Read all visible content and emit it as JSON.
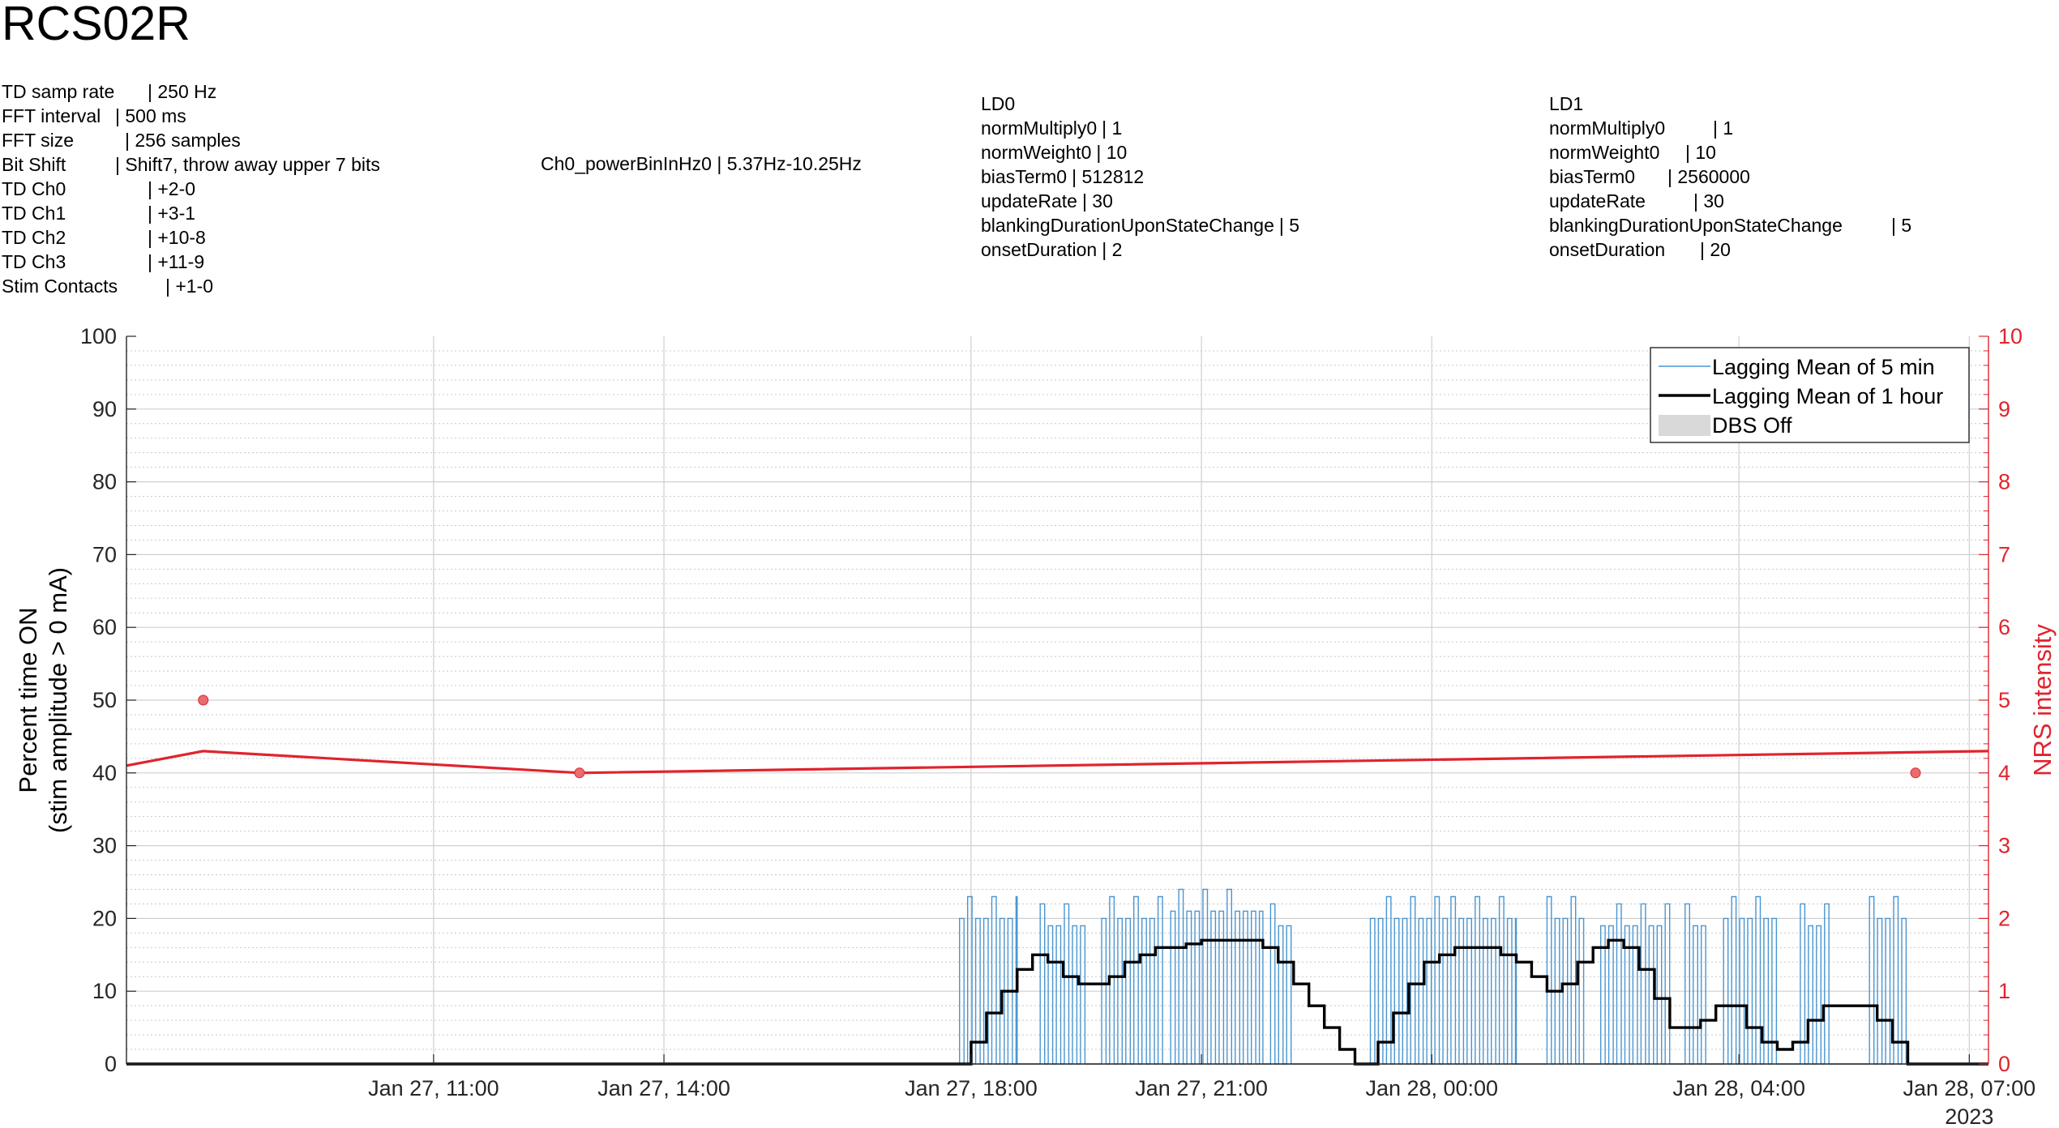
{
  "header": {
    "title": "RCS02R"
  },
  "td_settings": [
    {
      "key": "TD samp rate",
      "value": "| 250 Hz"
    },
    {
      "key": "FFT interval",
      "value": "| 500 ms"
    },
    {
      "key": "FFT size",
      "value": "| 256 samples"
    },
    {
      "key": "Bit Shift",
      "value": "| Shift7, throw away upper 7 bits"
    },
    {
      "key": "TD Ch0",
      "value": "| +2-0"
    },
    {
      "key": "TD Ch1",
      "value": "| +3-1"
    },
    {
      "key": "TD Ch2",
      "value": "| +10-8"
    },
    {
      "key": "TD Ch3",
      "value": "| +11-9"
    },
    {
      "key": "Stim Contacts",
      "value": "| +1-0"
    }
  ],
  "power_band": {
    "text": "Ch0_powerBinInHz0 | 5.37Hz-10.25Hz"
  },
  "ld0": {
    "title": "LD0",
    "rows": [
      {
        "key": "normMultiply0",
        "value": "| 1"
      },
      {
        "key": "normWeight0",
        "value": "| 10"
      },
      {
        "key": "biasTerm0",
        "value": "| 512812"
      },
      {
        "key": "updateRate",
        "value": "| 30"
      },
      {
        "key": "blankingDurationUponStateChange",
        "value": "| 5"
      },
      {
        "key": "onsetDuration",
        "value": "| 2"
      }
    ]
  },
  "ld1": {
    "title": "LD1",
    "rows": [
      {
        "key": "normMultiply0",
        "value": "| 1"
      },
      {
        "key": "normWeight0",
        "value": "| 10"
      },
      {
        "key": "biasTerm0",
        "value": "| 2560000"
      },
      {
        "key": "updateRate",
        "value": "| 30"
      },
      {
        "key": "blankingDurationUponStateChange",
        "value": "| 5"
      },
      {
        "key": "onsetDuration",
        "value": "| 20"
      }
    ]
  },
  "chart_data": {
    "type": "line",
    "title": "",
    "ylabel_left": [
      "Percent time ON",
      "(stim amplitude > 0 mA)"
    ],
    "ylabel_right": "NRS intensity",
    "xlabel": "",
    "year_label": "2023",
    "x_unit": "hours relative to Jan 27, 00:00",
    "xlim": [
      7.0,
      31.25
    ],
    "ylim_left": [
      0,
      100
    ],
    "ylim_right": [
      0,
      10
    ],
    "y_ticks_left": [
      "0",
      "10",
      "20",
      "30",
      "40",
      "50",
      "60",
      "70",
      "80",
      "90",
      "100"
    ],
    "y_ticks_right": [
      "0",
      "1",
      "2",
      "3",
      "4",
      "5",
      "6",
      "7",
      "8",
      "9",
      "10"
    ],
    "x_ticks": [
      {
        "x": 11,
        "label": "Jan 27, 11:00"
      },
      {
        "x": 14,
        "label": "Jan 27, 14:00"
      },
      {
        "x": 18,
        "label": "Jan 27, 18:00"
      },
      {
        "x": 21,
        "label": "Jan 27, 21:00"
      },
      {
        "x": 24,
        "label": "Jan 28, 00:00"
      },
      {
        "x": 28,
        "label": "Jan 28, 04:00"
      },
      {
        "x": 31,
        "label": "Jan 28, 07:00"
      }
    ],
    "grid": true,
    "minor_grid_y": true,
    "legend_position": "top-right",
    "legend": [
      {
        "label": "Lagging Mean of 5 min",
        "style": "thin-line",
        "color": "#4a95d0"
      },
      {
        "label": "Lagging Mean of 1 hour",
        "style": "thick-line",
        "color": "#000000"
      },
      {
        "label": "DBS Off",
        "style": "patch",
        "color": "#d9d9d9"
      }
    ],
    "series": [
      {
        "name": "Lagging Mean of 5 min",
        "color": "#4a95d0",
        "axis": "left",
        "segments": [
          {
            "x_start": 17.85,
            "x_end": 18.6,
            "amplitude": 20
          },
          {
            "x_start": 18.9,
            "x_end": 19.5,
            "amplitude": 19
          },
          {
            "x_start": 19.7,
            "x_end": 20.5,
            "amplitude": 20
          },
          {
            "x_start": 20.6,
            "x_end": 21.8,
            "amplitude": 21
          },
          {
            "x_start": 21.9,
            "x_end": 22.2,
            "amplitude": 19
          },
          {
            "x_start": 23.2,
            "x_end": 25.1,
            "amplitude": 20
          },
          {
            "x_start": 25.5,
            "x_end": 26.0,
            "amplitude": 20
          },
          {
            "x_start": 26.2,
            "x_end": 27.1,
            "amplitude": 19
          },
          {
            "x_start": 27.3,
            "x_end": 27.6,
            "amplitude": 19
          },
          {
            "x_start": 27.8,
            "x_end": 28.5,
            "amplitude": 20
          },
          {
            "x_start": 28.8,
            "x_end": 29.2,
            "amplitude": 19
          },
          {
            "x_start": 29.7,
            "x_end": 30.2,
            "amplitude": 20
          }
        ]
      },
      {
        "name": "Lagging Mean of 1 hour",
        "color": "#000000",
        "axis": "left",
        "x": [
          7.0,
          17.9,
          18.0,
          18.2,
          18.4,
          18.6,
          18.8,
          19.0,
          19.2,
          19.4,
          19.6,
          19.8,
          20.0,
          20.2,
          20.4,
          20.6,
          20.8,
          21.0,
          21.2,
          21.4,
          21.6,
          21.8,
          22.0,
          22.2,
          22.4,
          22.6,
          22.8,
          23.0,
          23.2,
          23.3,
          23.5,
          23.7,
          23.9,
          24.1,
          24.3,
          24.5,
          24.7,
          24.9,
          25.1,
          25.3,
          25.5,
          25.7,
          25.9,
          26.1,
          26.3,
          26.5,
          26.7,
          26.9,
          27.1,
          27.3,
          27.5,
          27.7,
          27.9,
          28.1,
          28.3,
          28.5,
          28.7,
          28.9,
          29.1,
          29.3,
          29.4,
          29.6,
          29.8,
          30.0,
          30.2,
          30.4,
          30.5,
          30.55,
          31.25
        ],
        "values": [
          0,
          0,
          3,
          7,
          10,
          13,
          15,
          14,
          12,
          11,
          11,
          12,
          14,
          15,
          16,
          16,
          16.5,
          17,
          17,
          17,
          17,
          16,
          14,
          11,
          8,
          5,
          2,
          0,
          0,
          3,
          7,
          11,
          14,
          15,
          16,
          16,
          16,
          15,
          14,
          12,
          10,
          11,
          14,
          16,
          17,
          16,
          13,
          9,
          5,
          5,
          6,
          8,
          8,
          5,
          3,
          2,
          3,
          6,
          8,
          8,
          8,
          8,
          6,
          3,
          0,
          0,
          0,
          0,
          0
        ]
      },
      {
        "name": "NRS intensity",
        "color": "#e0242d",
        "axis": "right",
        "x": [
          7.0,
          8.0,
          12.9,
          31.25
        ],
        "values": [
          4.1,
          4.3,
          4.0,
          4.3
        ]
      }
    ],
    "nrs_points": [
      {
        "x": 8.0,
        "value": 5.0
      },
      {
        "x": 12.9,
        "value": 4.0
      },
      {
        "x": 30.3,
        "value": 4.0
      }
    ]
  }
}
